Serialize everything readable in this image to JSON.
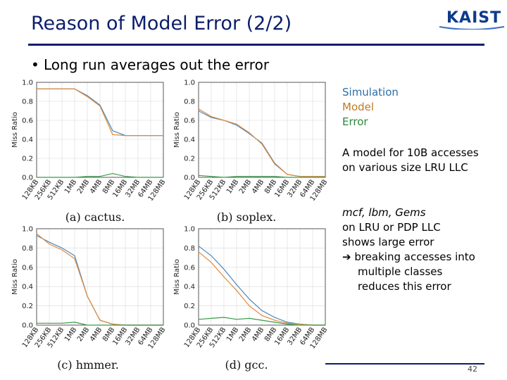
{
  "slide": {
    "title": "Reason of Model Error (2/2)",
    "logo_text": "KAIST",
    "bullet": "Long run averages out the error",
    "page_number": "42"
  },
  "legend": {
    "simulation": "Simulation",
    "model": "Model",
    "error": "Error"
  },
  "notes": {
    "line1": "A model for 10B accesses",
    "line2": "on various size LRU LLC",
    "mcf": "mcf, lbm, Gems",
    "line3": "on LRU or PDP LLC",
    "line4": "shows large error",
    "line5": "➔ breaking accesses into",
    "line6": "multiple classes",
    "line7": "reduces this error"
  },
  "colors": {
    "title": "#0c1e6b",
    "simulation": "#4a86b8",
    "model": "#e08a3a",
    "error": "#3a9a48"
  },
  "chart_data": [
    {
      "type": "line",
      "caption": "(a) cactus.",
      "ylabel": "Miss Ratio",
      "categories": [
        "128KB",
        "256KB",
        "512KB",
        "1MB",
        "2MB",
        "4MB",
        "8MB",
        "16MB",
        "32MB",
        "64MB",
        "128MB"
      ],
      "ylim": [
        0,
        1.0
      ],
      "yticks": [
        "0.0",
        "0.2",
        "0.4",
        "0.6",
        "0.8",
        "1.0"
      ],
      "series": [
        {
          "name": "Simulation",
          "values": [
            0.93,
            0.93,
            0.93,
            0.93,
            0.86,
            0.76,
            0.49,
            0.44,
            0.44,
            0.44,
            0.44
          ]
        },
        {
          "name": "Model",
          "values": [
            0.93,
            0.93,
            0.93,
            0.93,
            0.85,
            0.75,
            0.45,
            0.44,
            0.44,
            0.44,
            0.44
          ]
        },
        {
          "name": "Error",
          "values": [
            0.0,
            0.0,
            0.0,
            0.0,
            0.01,
            0.01,
            0.04,
            0.01,
            0.0,
            0.0,
            0.0
          ]
        }
      ]
    },
    {
      "type": "line",
      "caption": "(b) soplex.",
      "ylabel": "Miss Ratio",
      "categories": [
        "128KB",
        "256KB",
        "512KB",
        "1MB",
        "2MB",
        "4MB",
        "8MB",
        "16MB",
        "32MB",
        "64MB",
        "128MB"
      ],
      "ylim": [
        0,
        1.0
      ],
      "yticks": [
        "0.0",
        "0.2",
        "0.4",
        "0.6",
        "0.8",
        "1.0"
      ],
      "series": [
        {
          "name": "Simulation",
          "values": [
            0.7,
            0.63,
            0.6,
            0.55,
            0.46,
            0.36,
            0.15,
            0.03,
            0.01,
            0.01,
            0.01
          ]
        },
        {
          "name": "Model",
          "values": [
            0.72,
            0.64,
            0.6,
            0.56,
            0.47,
            0.35,
            0.14,
            0.03,
            0.01,
            0.01,
            0.01
          ]
        },
        {
          "name": "Error",
          "values": [
            0.02,
            0.01,
            0.0,
            0.01,
            0.01,
            0.01,
            0.01,
            0.0,
            0.0,
            0.0,
            0.0
          ]
        }
      ]
    },
    {
      "type": "line",
      "caption": "(c) hmmer.",
      "ylabel": "Miss Ratio",
      "categories": [
        "128KB",
        "256KB",
        "512KB",
        "1MB",
        "2MB",
        "4MB",
        "8MB",
        "16MB",
        "32MB",
        "64MB",
        "128MB"
      ],
      "ylim": [
        0,
        1.0
      ],
      "yticks": [
        "0.0",
        "0.2",
        "0.4",
        "0.6",
        "0.8",
        "1.0"
      ],
      "series": [
        {
          "name": "Simulation",
          "values": [
            0.93,
            0.86,
            0.8,
            0.72,
            0.3,
            0.05,
            0.01,
            0.0,
            0.0,
            0.0,
            0.0
          ]
        },
        {
          "name": "Model",
          "values": [
            0.95,
            0.84,
            0.78,
            0.69,
            0.3,
            0.05,
            0.01,
            0.0,
            0.0,
            0.0,
            0.0
          ]
        },
        {
          "name": "Error",
          "values": [
            0.02,
            0.02,
            0.02,
            0.03,
            0.0,
            0.0,
            0.0,
            0.0,
            0.0,
            0.0,
            0.0
          ]
        }
      ]
    },
    {
      "type": "line",
      "caption": "(d) gcc.",
      "ylabel": "Miss Ratio",
      "categories": [
        "128KB",
        "256KB",
        "512KB",
        "1MB",
        "2MB",
        "4MB",
        "8MB",
        "16MB",
        "32MB",
        "64MB",
        "128MB"
      ],
      "ylim": [
        0,
        1.0
      ],
      "yticks": [
        "0.0",
        "0.2",
        "0.4",
        "0.6",
        "0.8",
        "1.0"
      ],
      "series": [
        {
          "name": "Simulation",
          "values": [
            0.82,
            0.72,
            0.58,
            0.42,
            0.27,
            0.15,
            0.08,
            0.03,
            0.01,
            0.0,
            0.0
          ]
        },
        {
          "name": "Model",
          "values": [
            0.76,
            0.65,
            0.5,
            0.36,
            0.2,
            0.1,
            0.05,
            0.02,
            0.01,
            0.0,
            0.0
          ]
        },
        {
          "name": "Error",
          "values": [
            0.06,
            0.07,
            0.08,
            0.06,
            0.07,
            0.05,
            0.03,
            0.01,
            0.0,
            0.0,
            0.0
          ]
        }
      ]
    }
  ]
}
